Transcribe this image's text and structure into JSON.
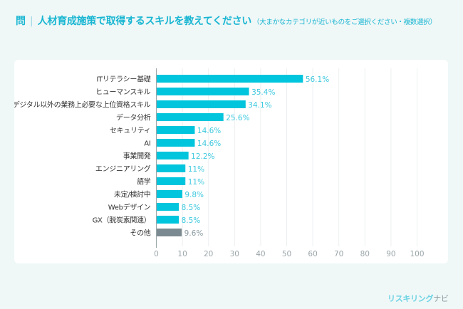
{
  "header": {
    "question_mark": "問",
    "separator": "|",
    "title": "人材育成施策で取得するスキルを教えてください",
    "note": "（大まかなカテゴリが近いものをご選択ください・複数選択）"
  },
  "logo": {
    "part1": "リスキリング",
    "part2": "ナビ"
  },
  "colors": {
    "bar": "#00c5dc",
    "bar_other": "#7b8a90",
    "label": "#3ec9de",
    "label_other": "#8a9aa0",
    "title": "#18b6d2"
  },
  "chart_data": {
    "type": "bar",
    "orientation": "horizontal",
    "title": "人材育成施策で取得するスキルを教えてください",
    "xlabel": "",
    "ylabel": "",
    "xlim": [
      0,
      100
    ],
    "x_ticks": [
      "0",
      "10",
      "20",
      "30",
      "40",
      "50",
      "60",
      "70",
      "80",
      "90",
      "100"
    ],
    "grid": true,
    "categories": [
      "ITリテラシー基礎",
      "ヒューマンスキル",
      "デジタル以外の業務上必要な上位資格スキル",
      "データ分析",
      "セキュリティ",
      "AI",
      "事業開発",
      "エンジニアリング",
      "語学",
      "未定/検討中",
      "Webデザイン",
      "GX（脱炭素関連）",
      "その他"
    ],
    "values": [
      56.1,
      35.4,
      34.1,
      25.6,
      14.6,
      14.6,
      12.2,
      11,
      11,
      9.8,
      8.5,
      8.5,
      9.6
    ],
    "value_labels": [
      "56.1%",
      "35.4%",
      "34.1%",
      "25.6%",
      "14.6%",
      "14.6%",
      "12.2%",
      "11%",
      "11%",
      "9.8%",
      "8.5%",
      "8.5%",
      "9.6%"
    ],
    "highlight_last_gray": true
  }
}
